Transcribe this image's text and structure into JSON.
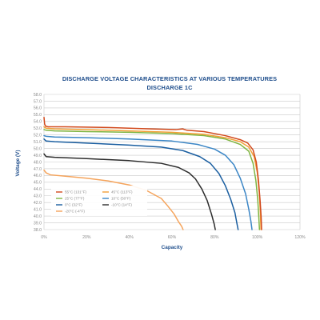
{
  "chart_data": {
    "type": "line",
    "title": "DISCHARGE VOLTAGE CHARACTERISTICS AT VARIOUS TEMPERATURES",
    "subtitle": "DISCHARGE 1C",
    "xlabel": "Capacity",
    "ylabel": "Voltage (V)",
    "xlim": [
      0,
      120
    ],
    "ylim": [
      38.0,
      58.0
    ],
    "x_ticks": [
      "0%",
      "20%",
      "40%",
      "60%",
      "80%",
      "100%",
      "120%"
    ],
    "y_ticks": [
      "38.0",
      "39.0",
      "40.0",
      "41.0",
      "42.0",
      "43.0",
      "44.0",
      "45.0",
      "46.0",
      "47.0",
      "48.0",
      "49.0",
      "50.0",
      "51.0",
      "52.0",
      "53.0",
      "54.0",
      "55.0",
      "56.0",
      "57.0",
      "58.0"
    ],
    "grid": true,
    "legend_position": "lower-left",
    "series": [
      {
        "name": "-20°C (-4°F)",
        "color": "#f5a45c",
        "x": [
          0,
          1,
          3,
          10,
          20,
          30,
          40,
          48,
          55,
          58,
          61,
          63,
          64.5,
          65.2
        ],
        "y": [
          46.8,
          46.4,
          46.1,
          45.9,
          45.6,
          45.2,
          44.6,
          43.8,
          42.6,
          41.5,
          40.3,
          39.2,
          38.5,
          38.0
        ]
      },
      {
        "name": "-10°C (14°F)",
        "color": "#2c2c2c",
        "x": [
          0,
          1,
          5,
          20,
          40,
          55,
          63,
          68,
          71,
          74,
          76.5,
          78.5,
          79.8,
          80.3
        ],
        "y": [
          49.2,
          48.8,
          48.7,
          48.5,
          48.2,
          47.8,
          47.2,
          46.4,
          45.5,
          44.0,
          42.3,
          40.3,
          38.8,
          38.0
        ]
      },
      {
        "name": "0°C (32°F)",
        "color": "#1a5ea0",
        "x": [
          0,
          1,
          5,
          20,
          40,
          55,
          65,
          73,
          78,
          82,
          85,
          87.5,
          89.5,
          90.5,
          91
        ],
        "y": [
          51.4,
          51.1,
          51.0,
          50.8,
          50.5,
          50.2,
          49.7,
          48.8,
          47.8,
          46.3,
          44.5,
          42.5,
          40.5,
          38.8,
          38.0
        ]
      },
      {
        "name": "10°C (50°F)",
        "color": "#3b86c6",
        "x": [
          0,
          1,
          5,
          20,
          40,
          60,
          72,
          80,
          85,
          89,
          92,
          94.5,
          96,
          97,
          97.5
        ],
        "y": [
          51.9,
          51.8,
          51.7,
          51.6,
          51.4,
          51.1,
          50.6,
          49.9,
          49.0,
          47.6,
          45.6,
          43.3,
          41.0,
          39.2,
          38.0
        ]
      },
      {
        "name": "25°C (77°F)",
        "color": "#7fb542",
        "x": [
          0,
          1,
          5,
          20,
          40,
          60,
          75,
          85,
          92,
          96,
          98,
          99.3,
          100.2,
          100.7,
          101
        ],
        "y": [
          52.8,
          52.7,
          52.6,
          52.5,
          52.4,
          52.2,
          51.9,
          51.4,
          50.6,
          49.6,
          47.8,
          45.3,
          42.4,
          39.8,
          38.0
        ]
      },
      {
        "name": "45°C (113°F)",
        "color": "#f3a037",
        "x": [
          0,
          1,
          5,
          20,
          40,
          60,
          75,
          85,
          92,
          96,
          98.5,
          100,
          100.9,
          101.4,
          101.7
        ],
        "y": [
          53.2,
          53.0,
          52.9,
          52.8,
          52.6,
          52.4,
          52.1,
          51.6,
          51.0,
          50.2,
          48.8,
          46.4,
          43.5,
          40.6,
          38.0
        ]
      },
      {
        "name": "55°C (131°F)",
        "color": "#d24a1d",
        "x": [
          0,
          0.3,
          0.8,
          2,
          10,
          30,
          50,
          62,
          65,
          67,
          75,
          85,
          92,
          95.5,
          98,
          99.5,
          100.5,
          101.3,
          101.8,
          102
        ],
        "y": [
          54.6,
          53.6,
          53.3,
          53.2,
          53.2,
          53.1,
          52.9,
          52.8,
          52.9,
          52.7,
          52.5,
          51.9,
          51.3,
          50.8,
          49.8,
          48.0,
          45.4,
          42.3,
          39.8,
          38.0
        ]
      }
    ]
  }
}
